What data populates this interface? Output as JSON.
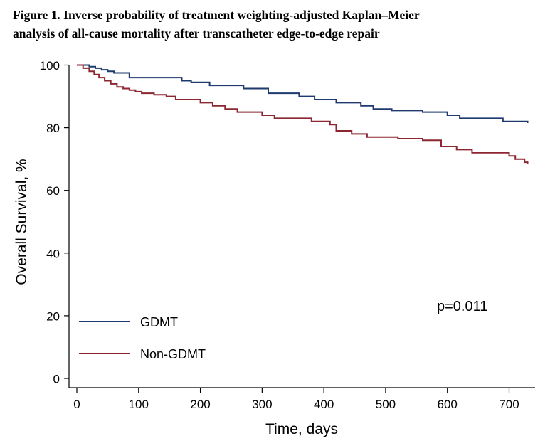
{
  "figure": {
    "title_line1": "Figure 1. Inverse probability of treatment weighting-adjusted Kaplan–Meier",
    "title_line2": "analysis of all-cause mortality after transcatheter edge-to-edge repair"
  },
  "chart_data": {
    "type": "line",
    "subtype": "kaplan-meier step",
    "xlabel": "Time, days",
    "ylabel": "Overall Survival, %",
    "xlim": [
      0,
      730
    ],
    "ylim": [
      0,
      100
    ],
    "xticks": [
      0,
      100,
      200,
      300,
      400,
      500,
      600,
      700
    ],
    "yticks": [
      0,
      20,
      40,
      60,
      80,
      100
    ],
    "grid": false,
    "legend_position": "bottom-left",
    "annotation": "p=0.011",
    "series": [
      {
        "name": "GDMT",
        "color": "#1f3a6e",
        "x": [
          0,
          20,
          30,
          40,
          50,
          60,
          85,
          170,
          185,
          215,
          270,
          310,
          360,
          385,
          420,
          460,
          480,
          510,
          560,
          600,
          620,
          690,
          730
        ],
        "y": [
          100,
          99.5,
          99,
          98.5,
          98,
          97.5,
          96,
          95,
          94.5,
          93.5,
          92.5,
          91,
          90,
          89,
          88,
          87,
          86,
          85.5,
          85,
          84,
          83,
          82,
          81.5
        ]
      },
      {
        "name": "Non-GDMT",
        "color": "#8c2630",
        "x": [
          0,
          10,
          20,
          28,
          36,
          45,
          55,
          65,
          75,
          85,
          95,
          105,
          125,
          145,
          160,
          200,
          220,
          240,
          260,
          300,
          320,
          380,
          410,
          420,
          445,
          470,
          520,
          560,
          590,
          615,
          640,
          700,
          710,
          725,
          730
        ],
        "y": [
          100,
          99,
          98,
          97,
          96,
          95,
          94,
          93,
          92.5,
          92,
          91.5,
          91,
          90.5,
          90,
          89,
          88,
          87,
          86,
          85,
          84,
          83,
          82,
          81,
          79,
          78,
          77,
          76.5,
          76,
          74,
          73,
          72,
          71,
          70,
          69,
          68.5
        ]
      }
    ]
  }
}
